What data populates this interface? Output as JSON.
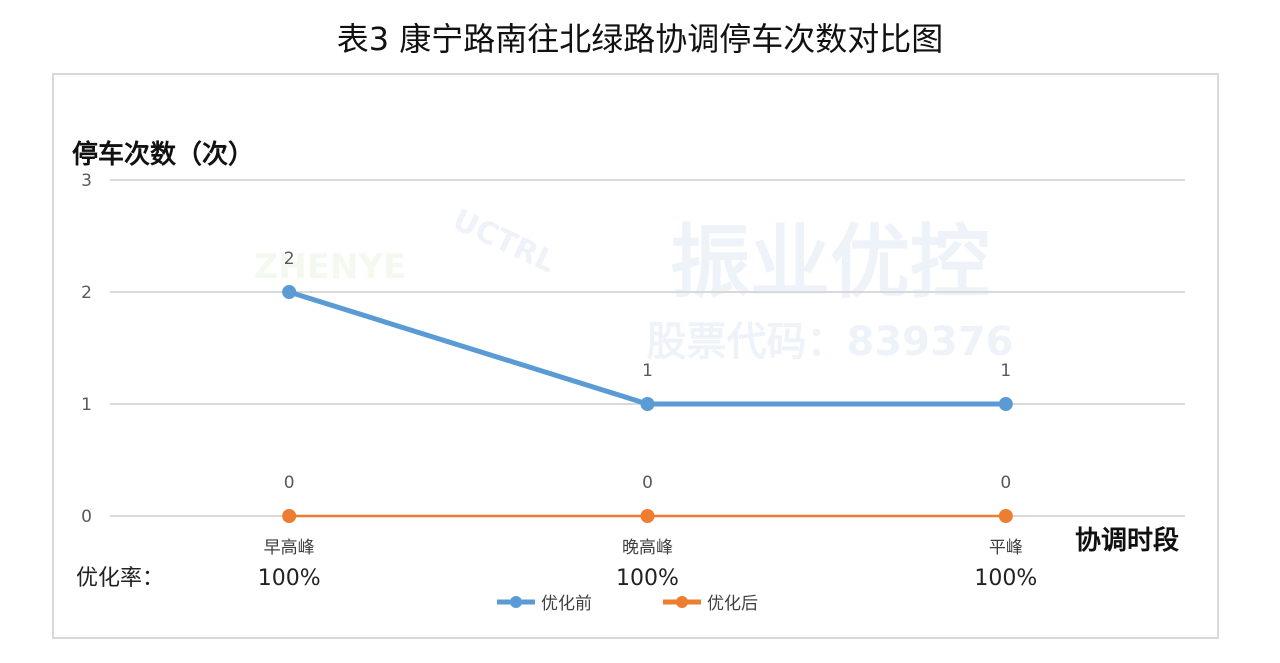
{
  "chart_data": {
    "type": "line",
    "title": "表3 康宁路南往北绿路协调停车次数对比图",
    "ylabel": "停车次数（次）",
    "xlabel": "协调时段",
    "ylim": [
      0,
      3
    ],
    "yticks": [
      0,
      1,
      2,
      3
    ],
    "grid": true,
    "legend_position": "bottom",
    "categories": [
      "早高峰",
      "晚高峰",
      "平峰"
    ],
    "series": [
      {
        "name": "优化前",
        "values": [
          2,
          1,
          1
        ],
        "color": "#5b9bd5"
      },
      {
        "name": "优化后",
        "values": [
          0,
          0,
          0
        ],
        "color": "#ed7d31"
      }
    ],
    "rate_label": "优化率：",
    "rates": [
      "100%",
      "100%",
      "100%"
    ],
    "watermark": {
      "brand": "振业优控",
      "stock": "股票代码：839376",
      "logo_text": "ZHENYE",
      "logo_arc": "UCTRL"
    }
  }
}
